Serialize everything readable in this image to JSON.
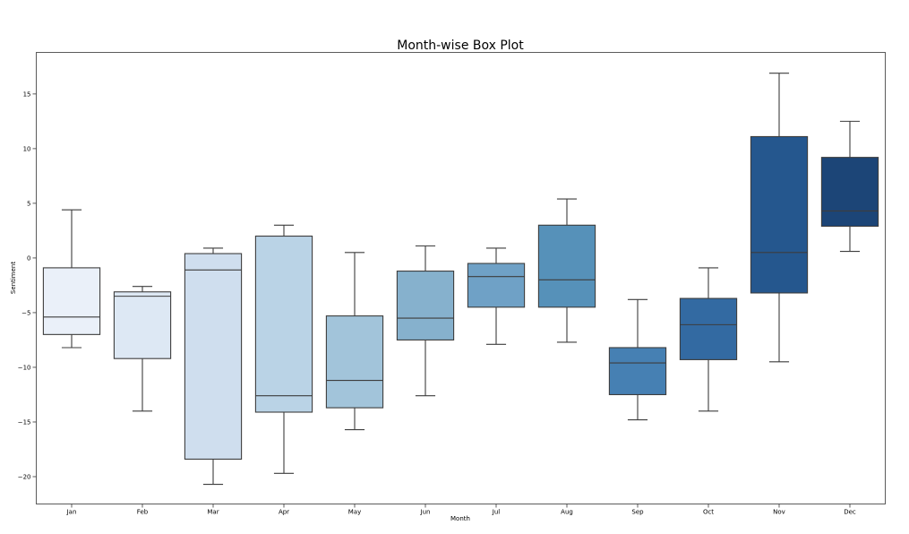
{
  "chart_data": {
    "type": "box",
    "title": "Month-wise Box Plot",
    "xlabel": "Month",
    "ylabel": "Sentiment",
    "ylim": [
      -22.5,
      18.8
    ],
    "yticks": [
      -20,
      -15,
      -10,
      -5,
      0,
      5,
      10,
      15
    ],
    "ytick_labels": [
      "−20",
      "−15",
      "−10",
      "−5",
      "0",
      "5",
      "10",
      "15"
    ],
    "grid": false,
    "legend": "none",
    "categories": [
      "Jan",
      "Feb",
      "Mar",
      "Apr",
      "May",
      "Jun",
      "Jul",
      "Aug",
      "Sep",
      "Oct",
      "Nov",
      "Dec"
    ],
    "boxes": [
      {
        "label": "Jan",
        "whislo": -8.2,
        "q1": -7.0,
        "med": -5.4,
        "q3": -0.9,
        "whishi": 4.4,
        "color": "#eaf0f9"
      },
      {
        "label": "Feb",
        "whislo": -14.0,
        "q1": -9.2,
        "med": -3.5,
        "q3": -3.1,
        "whishi": -2.6,
        "color": "#dde8f4"
      },
      {
        "label": "Mar",
        "whislo": -20.7,
        "q1": -18.4,
        "med": -1.1,
        "q3": 0.4,
        "whishi": 0.9,
        "color": "#cfdeee"
      },
      {
        "label": "Apr",
        "whislo": -19.7,
        "q1": -14.1,
        "med": -12.6,
        "q3": 2.0,
        "whishi": 3.0,
        "color": "#bad3e6"
      },
      {
        "label": "May",
        "whislo": -15.7,
        "q1": -13.7,
        "med": -11.2,
        "q3": -5.3,
        "whishi": 0.5,
        "color": "#a2c4da"
      },
      {
        "label": "Jun",
        "whislo": -12.6,
        "q1": -7.5,
        "med": -5.5,
        "q3": -1.2,
        "whishi": 1.1,
        "color": "#86b1cd"
      },
      {
        "label": "Jul",
        "whislo": -7.9,
        "q1": -4.5,
        "med": -1.7,
        "q3": -0.5,
        "whishi": 0.9,
        "color": "#6fa1c6"
      },
      {
        "label": "Aug",
        "whislo": -7.7,
        "q1": -4.5,
        "med": -2.0,
        "q3": 3.0,
        "whishi": 5.4,
        "color": "#5691b9"
      },
      {
        "label": "Sep",
        "whislo": -14.8,
        "q1": -12.5,
        "med": -9.6,
        "q3": -8.2,
        "whishi": -3.8,
        "color": "#4680b3"
      },
      {
        "label": "Oct",
        "whislo": -14.0,
        "q1": -9.3,
        "med": -6.1,
        "q3": -3.7,
        "whishi": -0.9,
        "color": "#336aa2"
      },
      {
        "label": "Nov",
        "whislo": -9.5,
        "q1": -3.2,
        "med": 0.5,
        "q3": 11.1,
        "whishi": 16.9,
        "color": "#25578e"
      },
      {
        "label": "Dec",
        "whislo": 0.6,
        "q1": 2.9,
        "med": 4.3,
        "q3": 9.2,
        "whishi": 12.5,
        "color": "#1c4577"
      }
    ]
  }
}
